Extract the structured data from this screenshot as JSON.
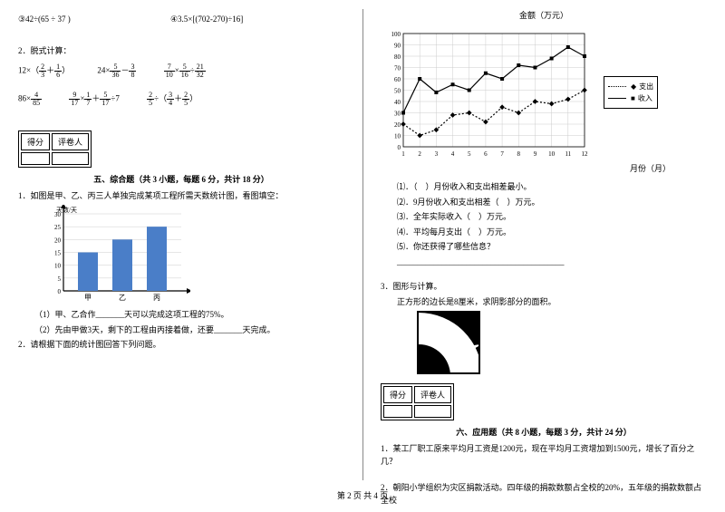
{
  "left": {
    "item3": "③42÷(65 ÷ 37 )",
    "item4": "④3.5×[(702-270)÷16]",
    "calc_title": "2．脱式计算：",
    "eq1": {
      "pre": "12×（",
      "f1n": "2",
      "f1d": "3",
      "mid": "＋",
      "f2n": "1",
      "f2d": "6",
      "post": "）"
    },
    "eq2": {
      "pre": "24×",
      "f1n": "5",
      "f1d": "36",
      "mid": "－",
      "f2n": "3",
      "f2d": "8",
      "post": ""
    },
    "eq3": {
      "f1n": "7",
      "f1d": "10",
      "m1": "×",
      "f2n": "5",
      "f2d": "16",
      "m2": "÷",
      "f3n": "21",
      "f3d": "32"
    },
    "eq4": {
      "pre": "86×",
      "f1n": "4",
      "f1d": "85"
    },
    "eq5": {
      "f1n": "9",
      "f1d": "17",
      "m1": "×",
      "f2n": "1",
      "f2d": "7",
      "m2": "＋",
      "f3n": "5",
      "f3d": "17",
      "post": "÷7"
    },
    "eq6": {
      "f1n": "2",
      "f1d": "5",
      "m1": "÷（",
      "f2n": "3",
      "f2d": "4",
      "m2": "＋",
      "f3n": "2",
      "f3d": "5",
      "post": "）"
    },
    "score_h1": "得分",
    "score_h2": "评卷人",
    "section5": "五、综合题（共 3 小题，每题 6 分，共计 18 分）",
    "q1": "1．如图是甲、乙、丙三人单独完成某项工程所需天数统计图，看图填空：",
    "bar": {
      "ylabel": "天数/天",
      "yticks": [
        "0",
        "5",
        "10",
        "15",
        "20",
        "25",
        "30"
      ],
      "cats": [
        "甲",
        "乙",
        "丙"
      ],
      "values": [
        15,
        20,
        25
      ],
      "ymax": 30,
      "bar_color": "#4a7ec8",
      "axis_color": "#000000"
    },
    "q1a": "（1）甲、乙合作_______天可以完成这项工程的75%。",
    "q1b": "（2）先由甲做3天，剩下的工程由丙接着做，还要_______天完成。",
    "q2": "2．请根据下面的统计图回答下列问题。"
  },
  "right": {
    "chart_title": "金额（万元）",
    "xlabel": "月份（月）",
    "line": {
      "yticks": [
        "0",
        "10",
        "20",
        "30",
        "40",
        "50",
        "60",
        "70",
        "80",
        "90",
        "100"
      ],
      "xticks": [
        "1",
        "2",
        "3",
        "4",
        "5",
        "6",
        "7",
        "8",
        "9",
        "10",
        "11",
        "12"
      ],
      "ymax": 100,
      "series": [
        {
          "name": "支出",
          "style": "dash",
          "values": [
            20,
            10,
            15,
            28,
            30,
            22,
            35,
            30,
            40,
            38,
            42,
            50
          ]
        },
        {
          "name": "收入",
          "style": "solid",
          "values": [
            30,
            60,
            48,
            55,
            50,
            65,
            60,
            72,
            70,
            78,
            88,
            80
          ]
        }
      ],
      "grid_color": "#cccccc",
      "axis_color": "#000000"
    },
    "legend_out": "支出",
    "legend_in": "收入",
    "r1": "⑴．（　）月份收入和支出相差最小。",
    "r2": "⑵．9月份收入和支出相差（　）万元。",
    "r3": "⑶．全年实际收入（　）万元。",
    "r4": "⑷．平均每月支出（　）万元。",
    "r5": "⑸．你还获得了哪些信息？",
    "line_blank": "_________________________________________",
    "q3": "3．图形与计算。",
    "q3a": "正方形的边长是8厘米，求阴影部分的面积。",
    "score_h1": "得分",
    "score_h2": "评卷人",
    "section6": "六、应用题（共 8 小题，每题 3 分，共计 24 分）",
    "aq1": "1．某工厂职工原来平均月工资是1200元，现在平均月工资增加到1500元，增长了百分之几？",
    "aq2": "2．朝阳小学组织为灾区捐款活动。四年级的捐款数额占全校的20%，五年级的捐款数额占全校"
  },
  "footer": "第 2 页 共 4 页"
}
